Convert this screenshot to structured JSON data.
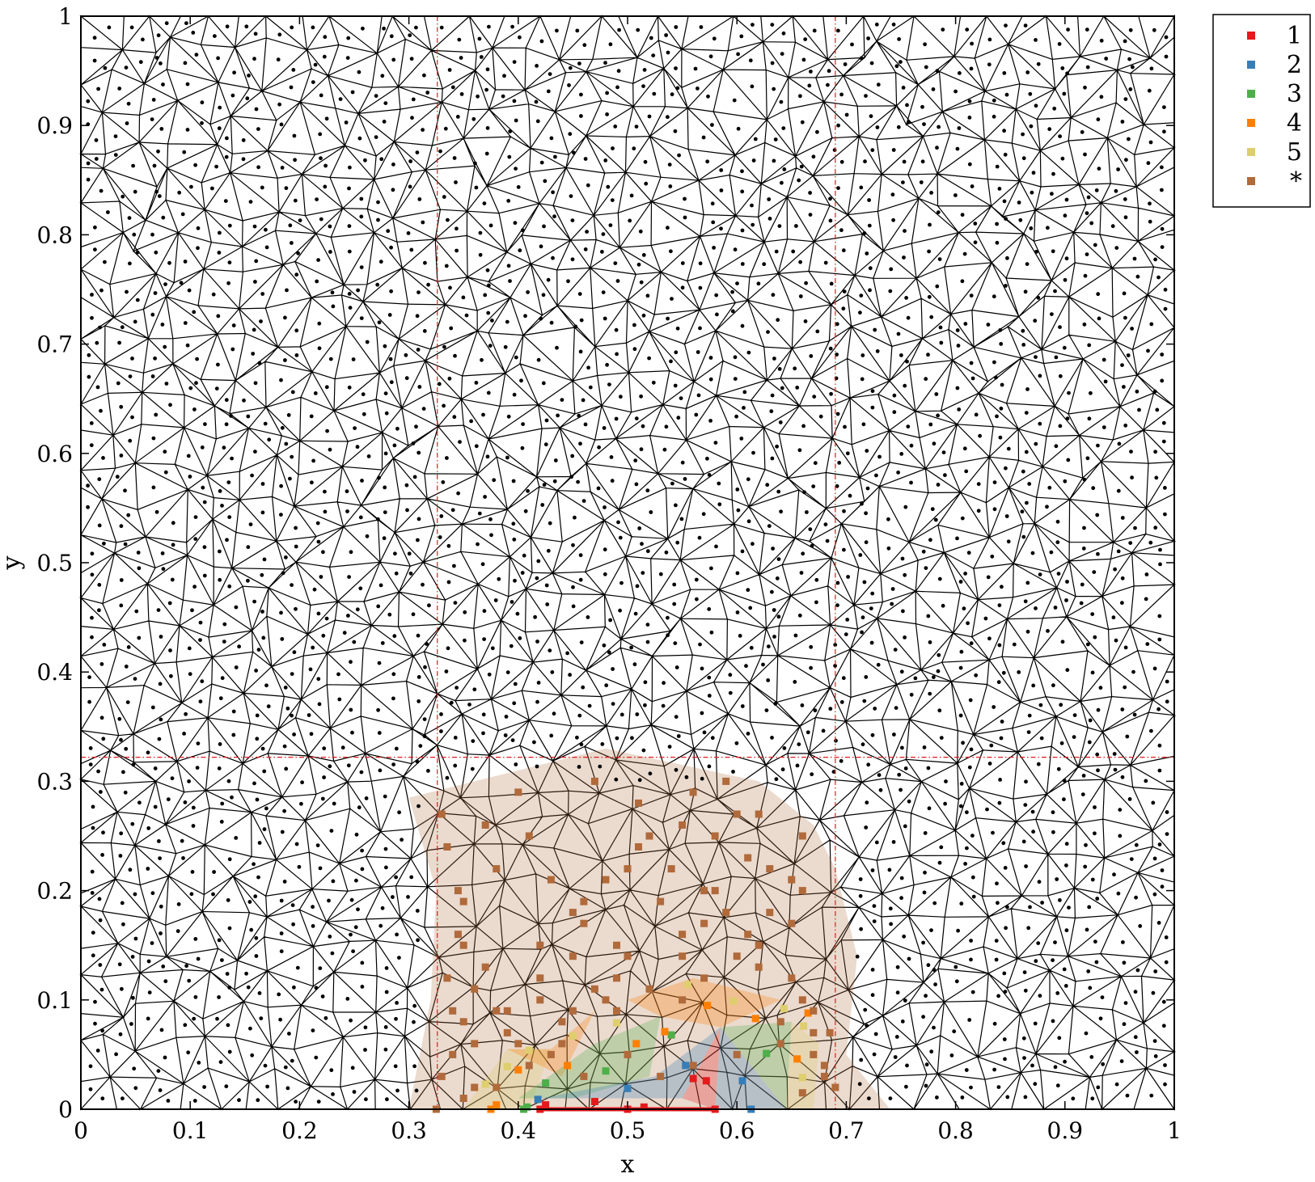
{
  "chart_data": {
    "type": "scatter",
    "title": "",
    "xlabel": "x",
    "ylabel": "y",
    "xlim": [
      0,
      1
    ],
    "ylim": [
      0,
      1
    ],
    "x_ticks": [
      "0",
      "0.1",
      "0.2",
      "0.3",
      "0.4",
      "0.5",
      "0.6",
      "0.7",
      "0.8",
      "0.9",
      "1"
    ],
    "y_ticks": [
      "0",
      "0.1",
      "0.2",
      "0.3",
      "0.4",
      "0.5",
      "0.6",
      "0.7",
      "0.8",
      "0.9",
      "1"
    ],
    "grid": false,
    "legend_position": "outside-top-right",
    "background_mesh": "triangulated mesh of the unit square with a dot at each triangle centroid",
    "reference_lines": {
      "color": "#e41a1c",
      "style": "dash-dot",
      "x": [
        0.326,
        0.69
      ],
      "y": [
        0.322
      ]
    },
    "source_segment": {
      "color": "#e41a1c",
      "x": [
        0.42,
        0.58
      ],
      "y": 0
    },
    "series": [
      {
        "name": "1",
        "color": "#e41a1c",
        "x": [
          0.42,
          0.425,
          0.47,
          0.5,
          0.515,
          0.58,
          0.572,
          0.56
        ],
        "y": [
          0.0,
          0.004,
          0.007,
          0.0,
          0.002,
          0.0,
          0.026,
          0.028
        ]
      },
      {
        "name": "2",
        "color": "#377eb8",
        "x": [
          0.418,
          0.5,
          0.553,
          0.605,
          0.613
        ],
        "y": [
          0.009,
          0.019,
          0.04,
          0.026,
          0.0
        ]
      },
      {
        "name": "3",
        "color": "#4daf4a",
        "x": [
          0.405,
          0.425,
          0.48,
          0.54,
          0.627,
          0.408
        ],
        "y": [
          0.0,
          0.024,
          0.035,
          0.068,
          0.051,
          0.002
        ]
      },
      {
        "name": "4",
        "color": "#ff7f00",
        "x": [
          0.375,
          0.38,
          0.4,
          0.445,
          0.508,
          0.534,
          0.573,
          0.617,
          0.655,
          0.665
        ],
        "y": [
          0.0,
          0.004,
          0.036,
          0.04,
          0.06,
          0.071,
          0.095,
          0.083,
          0.046,
          0.088
        ]
      },
      {
        "name": "5",
        "color": "#dece6d",
        "x": [
          0.37,
          0.39,
          0.41,
          0.45,
          0.49,
          0.555,
          0.597,
          0.643,
          0.661,
          0.66
        ],
        "y": [
          0.023,
          0.039,
          0.054,
          0.067,
          0.079,
          0.114,
          0.099,
          0.092,
          0.076,
          0.029
        ]
      },
      {
        "name": "*",
        "color": "#b06a3b",
        "x": [
          0.33,
          0.335,
          0.345,
          0.345,
          0.335,
          0.36,
          0.38,
          0.42,
          0.44,
          0.4,
          0.45,
          0.48,
          0.49,
          0.5,
          0.46,
          0.55,
          0.57,
          0.6,
          0.62,
          0.65,
          0.66,
          0.64,
          0.67,
          0.67,
          0.68,
          0.66,
          0.34,
          0.35,
          0.37,
          0.42,
          0.46,
          0.5,
          0.52,
          0.55,
          0.58,
          0.6,
          0.63,
          0.66,
          0.35,
          0.38,
          0.41,
          0.43,
          0.45,
          0.48,
          0.51,
          0.54,
          0.57,
          0.59,
          0.61,
          0.63,
          0.65,
          0.34,
          0.36,
          0.39,
          0.42,
          0.45,
          0.47,
          0.49,
          0.52,
          0.55,
          0.58,
          0.61,
          0.33,
          0.35,
          0.38,
          0.41,
          0.44,
          0.5,
          0.53,
          0.56,
          0.6,
          0.64,
          0.68,
          0.69,
          0.685,
          0.67,
          0.325,
          0.36,
          0.39,
          0.55,
          0.43,
          0.46,
          0.49,
          0.53,
          0.57,
          0.62,
          0.65,
          0.35,
          0.37,
          0.4,
          0.47,
          0.51,
          0.56,
          0.59,
          0.62,
          0.66
        ],
        "y": [
          0.27,
          0.24,
          0.2,
          0.16,
          0.12,
          0.11,
          0.09,
          0.1,
          0.08,
          0.06,
          0.09,
          0.1,
          0.12,
          0.14,
          0.17,
          0.14,
          0.12,
          0.14,
          0.13,
          0.12,
          0.1,
          0.08,
          0.07,
          0.05,
          0.03,
          0.015,
          0.05,
          0.08,
          0.13,
          0.15,
          0.19,
          0.22,
          0.25,
          0.26,
          0.25,
          0.27,
          0.22,
          0.2,
          0.19,
          0.22,
          0.25,
          0.21,
          0.18,
          0.21,
          0.24,
          0.22,
          0.2,
          0.18,
          0.16,
          0.18,
          0.21,
          0.09,
          0.06,
          0.07,
          0.12,
          0.14,
          0.11,
          0.09,
          0.11,
          0.1,
          0.2,
          0.23,
          0.03,
          0.01,
          0.02,
          0.04,
          0.06,
          0.05,
          0.03,
          0.04,
          0.05,
          0.06,
          0.04,
          0.02,
          0.07,
          0.09,
          0.0,
          0.02,
          0.09,
          0.16,
          0.05,
          0.03,
          0.15,
          0.19,
          0.17,
          0.15,
          0.17,
          0.15,
          0.26,
          0.29,
          0.3,
          0.28,
          0.29,
          0.3,
          0.27,
          0.25
        ],
        "patch_outline": {
          "x": [
            0.3,
            0.48,
            0.62,
            0.67,
            0.69,
            0.71,
            0.7,
            0.74,
            0.3,
            0.32,
            0.325,
            0.3
          ],
          "y": [
            0.285,
            0.33,
            0.3,
            0.26,
            0.22,
            0.14,
            0.05,
            0.0,
            0.0,
            0.1,
            0.2,
            0.285
          ]
        }
      }
    ]
  }
}
